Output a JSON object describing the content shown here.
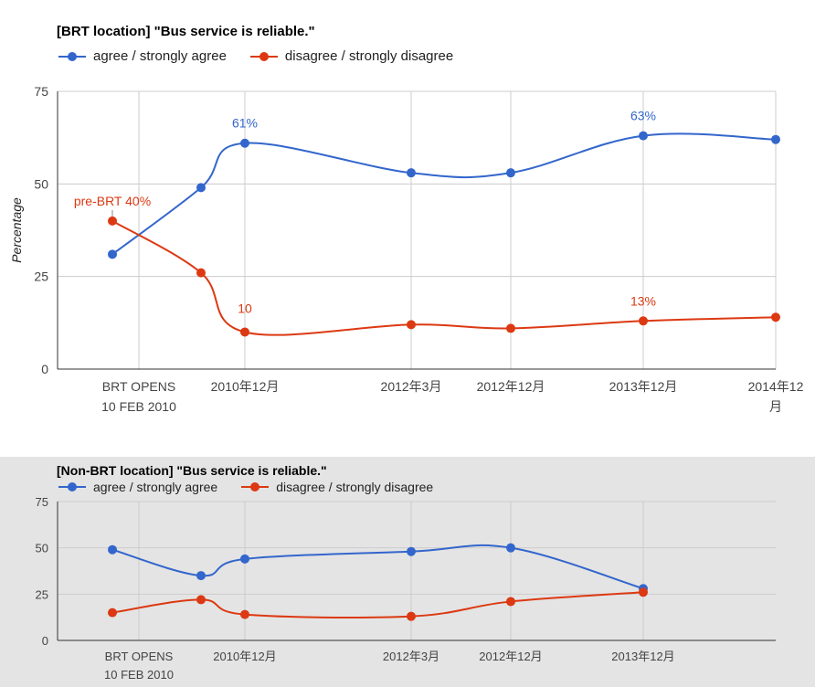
{
  "colors": {
    "agree": "#3366cc",
    "disagree": "#dc3912",
    "grid": "#cccccc",
    "axis": "#333333"
  },
  "chart_data": [
    {
      "type": "line",
      "title": "[BRT location] \"Bus service is reliable.\"",
      "ylabel": "Percentage",
      "ylim": [
        0,
        75
      ],
      "yticks": [
        0,
        25,
        50,
        75
      ],
      "x_tick_labels": [
        {
          "line1": "BRT OPENS",
          "line2": "10 FEB 2010",
          "at": "2010-02-10"
        },
        {
          "line1": "2010年12月",
          "line2": "",
          "at": "2010-12"
        },
        {
          "line1": "2012年3月",
          "line2": "",
          "at": "2012-03"
        },
        {
          "line1": "2012年12月",
          "line2": "",
          "at": "2012-12"
        },
        {
          "line1": "2013年12月",
          "line2": "",
          "at": "2013-12"
        },
        {
          "line1": "2014年12",
          "line2": "月",
          "at": "2014-12"
        }
      ],
      "legend": "top-left",
      "grid": true,
      "series": [
        {
          "name": "agree / strongly agree",
          "color_key": "agree",
          "points": [
            {
              "x": "2010-01",
              "y": 31
            },
            {
              "x": "2010-08",
              "y": 49
            },
            {
              "x": "2010-12",
              "y": 61,
              "label": "61%"
            },
            {
              "x": "2012-03",
              "y": 53
            },
            {
              "x": "2012-12",
              "y": 53
            },
            {
              "x": "2013-12",
              "y": 63,
              "label": "63%"
            },
            {
              "x": "2014-12",
              "y": 62
            }
          ]
        },
        {
          "name": "disagree / strongly disagree",
          "color_key": "disagree",
          "points": [
            {
              "x": "2010-01",
              "y": 40,
              "label": "pre-BRT 40%"
            },
            {
              "x": "2010-08",
              "y": 26
            },
            {
              "x": "2010-12",
              "y": 10,
              "label": "10"
            },
            {
              "x": "2012-03",
              "y": 12
            },
            {
              "x": "2012-12",
              "y": 11
            },
            {
              "x": "2013-12",
              "y": 13,
              "label": "13%"
            },
            {
              "x": "2014-12",
              "y": 14
            }
          ]
        }
      ]
    },
    {
      "type": "line",
      "title": "[Non-BRT location] \"Bus service is reliable.\"",
      "ylabel": "",
      "ylim": [
        0,
        75
      ],
      "yticks": [
        0,
        25,
        50,
        75
      ],
      "x_tick_labels": [
        {
          "line1": "BRT OPENS",
          "line2": "10 FEB 2010",
          "at": "2010-02-10"
        },
        {
          "line1": "2010年12月",
          "line2": "",
          "at": "2010-12"
        },
        {
          "line1": "2012年3月",
          "line2": "",
          "at": "2012-03"
        },
        {
          "line1": "2012年12月",
          "line2": "",
          "at": "2012-12"
        },
        {
          "line1": "2013年12月",
          "line2": "",
          "at": "2013-12"
        }
      ],
      "legend": "top-left",
      "grid": true,
      "series": [
        {
          "name": "agree / strongly agree",
          "color_key": "agree",
          "points": [
            {
              "x": "2010-01",
              "y": 49
            },
            {
              "x": "2010-08",
              "y": 35
            },
            {
              "x": "2010-12",
              "y": 44
            },
            {
              "x": "2012-03",
              "y": 48
            },
            {
              "x": "2012-12",
              "y": 50
            },
            {
              "x": "2013-12",
              "y": 28
            }
          ]
        },
        {
          "name": "disagree / strongly disagree",
          "color_key": "disagree",
          "points": [
            {
              "x": "2010-01",
              "y": 15
            },
            {
              "x": "2010-08",
              "y": 22
            },
            {
              "x": "2010-12",
              "y": 14
            },
            {
              "x": "2012-03",
              "y": 13
            },
            {
              "x": "2012-12",
              "y": 21
            },
            {
              "x": "2013-12",
              "y": 26
            }
          ]
        }
      ]
    }
  ]
}
